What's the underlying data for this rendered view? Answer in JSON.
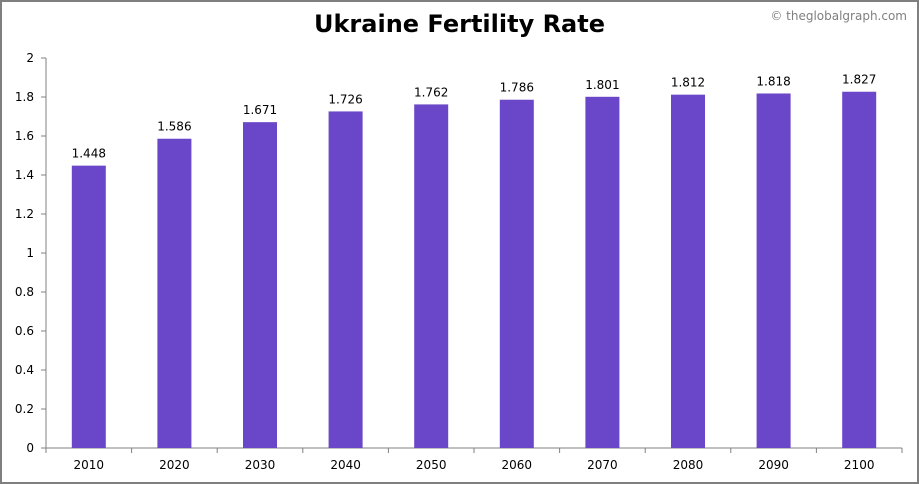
{
  "chart_data": {
    "type": "bar",
    "title": "Ukraine Fertility Rate",
    "credit": "© theglobalgraph.com",
    "categories": [
      "2010",
      "2020",
      "2030",
      "2040",
      "2050",
      "2060",
      "2070",
      "2080",
      "2090",
      "2100"
    ],
    "values": [
      1.448,
      1.586,
      1.671,
      1.726,
      1.762,
      1.786,
      1.801,
      1.812,
      1.818,
      1.827
    ],
    "data_labels": [
      "1.448",
      "1.586",
      "1.671",
      "1.726",
      "1.762",
      "1.786",
      "1.801",
      "1.812",
      "1.818",
      "1.827"
    ],
    "y_ticks": [
      "0",
      "0.2",
      "0.4",
      "0.6",
      "0.8",
      "1",
      "1.2",
      "1.4",
      "1.6",
      "1.8",
      "2"
    ],
    "xlabel": "",
    "ylabel": "",
    "ylim": [
      0,
      2
    ],
    "grid": false,
    "legend": "none",
    "colors": {
      "bar": "#6a46c8",
      "axis": "#808080",
      "border": "#7f7f7f"
    }
  }
}
